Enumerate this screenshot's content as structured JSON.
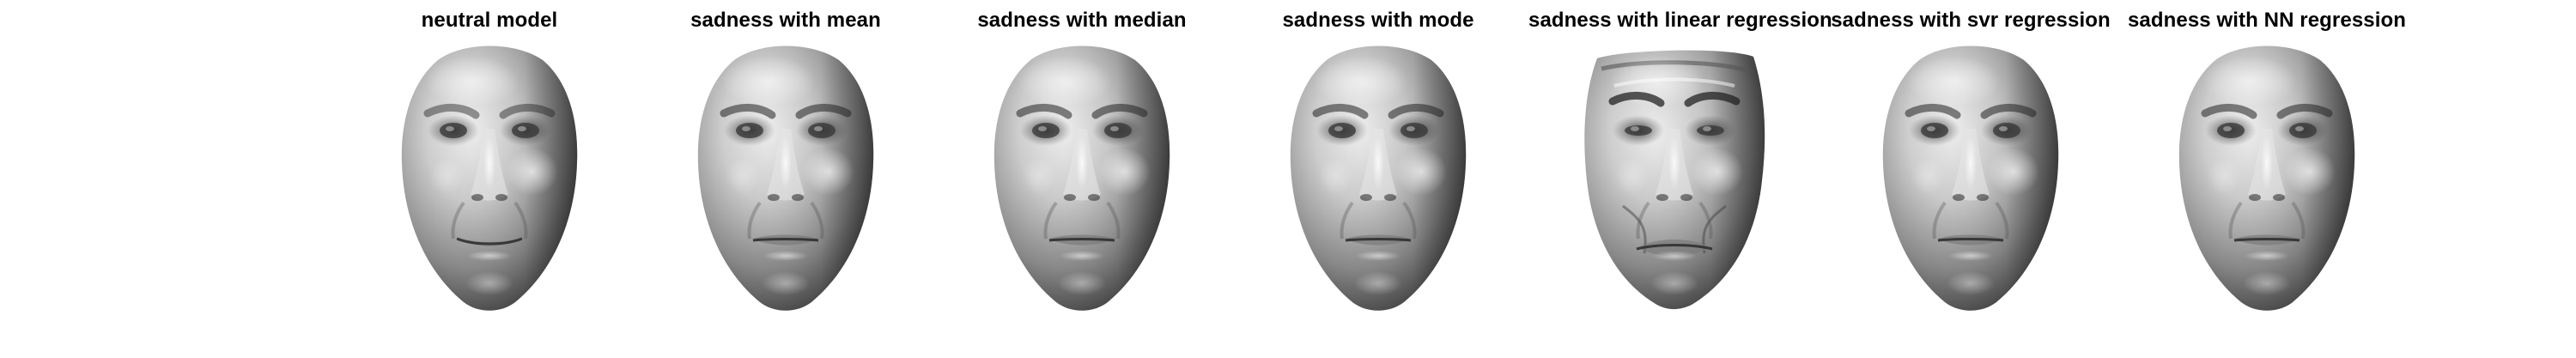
{
  "figure": {
    "panels": [
      {
        "title": "neutral model",
        "variant": "neutral"
      },
      {
        "title": "sadness with mean",
        "variant": "mild"
      },
      {
        "title": "sadness with median",
        "variant": "mild"
      },
      {
        "title": "sadness with mode",
        "variant": "mild"
      },
      {
        "title": "sadness with linear regression",
        "variant": "distorted"
      },
      {
        "title": "sadness with svr regression",
        "variant": "mild"
      },
      {
        "title": "sadness with NN regression",
        "variant": "mild"
      }
    ]
  },
  "colors": {
    "background": "#ffffff",
    "title": "#000000",
    "mesh_light": "#f2f2f2",
    "mesh_mid": "#9a9a9a",
    "mesh_dark": "#2a2a2a"
  }
}
